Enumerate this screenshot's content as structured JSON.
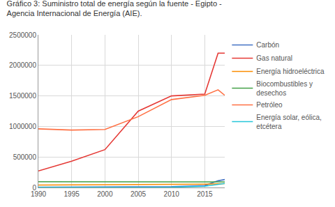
{
  "chart_data": {
    "type": "line",
    "title": "Gráfico 3: Suministro total de energía según la fuente - Egipto -\nAgencia Internacional de Energía (AIE).",
    "x": [
      1990,
      1995,
      2000,
      2005,
      2010,
      2015,
      2017,
      2018
    ],
    "series": [
      {
        "name": "Carbón",
        "color": "#4472c4",
        "values": [
          5000,
          6000,
          7000,
          8000,
          15000,
          30000,
          110000,
          130000
        ]
      },
      {
        "name": "Gas natural",
        "color": "#e53935",
        "values": [
          270000,
          430000,
          620000,
          1250000,
          1500000,
          1530000,
          2200000,
          2200000
        ]
      },
      {
        "name": "Energía hidroeléctrica",
        "color": "#fb8c00",
        "values": [
          40000,
          45000,
          48000,
          50000,
          52000,
          55000,
          60000,
          62000
        ]
      },
      {
        "name": "Biocombustibles y\ndesechos",
        "color": "#43a047",
        "values": [
          95000,
          95000,
          93000,
          92000,
          90000,
          90000,
          92000,
          92000
        ]
      },
      {
        "name": "Petróleo",
        "color": "#ff7043",
        "values": [
          960000,
          940000,
          950000,
          1160000,
          1440000,
          1510000,
          1600000,
          1510000
        ]
      },
      {
        "name": "Energía solar, eólica,\netcétera",
        "color": "#26c6da",
        "values": [
          1000,
          1000,
          1000,
          2000,
          5000,
          20000,
          55000,
          65000
        ]
      }
    ],
    "xlim": [
      1990,
      2018
    ],
    "xticks": [
      1990,
      1995,
      2000,
      2005,
      2010,
      2015
    ],
    "ylim": [
      0,
      2500000
    ],
    "yticks": [
      0,
      500000,
      1000000,
      1500000,
      2000000,
      2500000
    ],
    "grid": true,
    "legend": "right"
  }
}
